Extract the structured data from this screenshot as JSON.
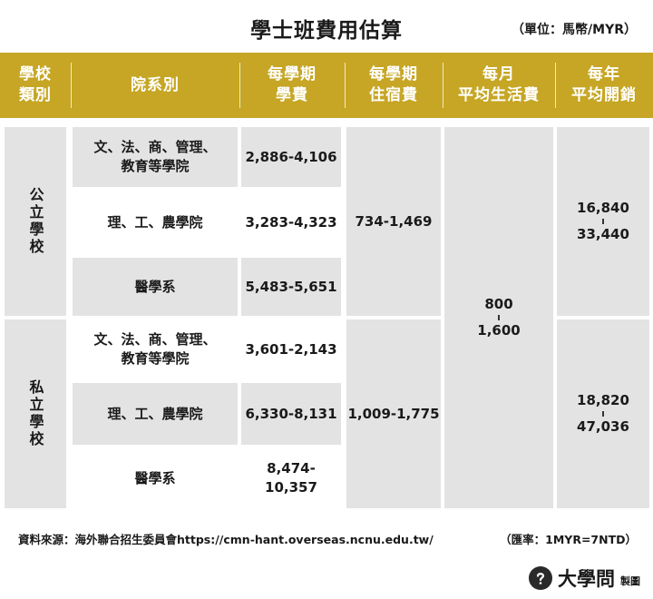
{
  "title": "學士班費用估算",
  "unit": "（單位：馬幣/MYR）",
  "headers": {
    "category": "學校\n類別",
    "department": "院系別",
    "tuition": "每學期\n學費",
    "housing": "每學期\n住宿費",
    "living": "每月\n平均生活費",
    "annual": "每年\n平均開銷"
  },
  "public": {
    "label": "公立學校",
    "rows": [
      {
        "dept": "文、法、商、管理、\n教育等學院",
        "tuition": "2,886-4,106"
      },
      {
        "dept": "理、工、農學院",
        "tuition": "3,283-4,323"
      },
      {
        "dept": "醫學系",
        "tuition": "5,483-5,651"
      }
    ],
    "housing": "734-1,469",
    "annual_min": "16,840",
    "annual_max": "33,440"
  },
  "private": {
    "label": "私立學校",
    "rows": [
      {
        "dept": "文、法、商、管理、\n教育等學院",
        "tuition": "3,601-2,143"
      },
      {
        "dept": "理、工、農學院",
        "tuition": "6,330-8,131"
      },
      {
        "dept": "醫學系",
        "tuition": "8,474-10,357"
      }
    ],
    "housing": "1,009-1,775",
    "annual_min": "18,820",
    "annual_max": "47,036"
  },
  "living_min": "800",
  "living_max": "1,600",
  "source": "資料來源：海外聯合招生委員會https://cmn-hant.overseas.ncnu.edu.tw/",
  "exchange": "（匯率：1MYR=7NTD）",
  "brand": {
    "name": "大學問",
    "suffix": "製圖",
    "logo_icon": "question-mark-icon"
  }
}
